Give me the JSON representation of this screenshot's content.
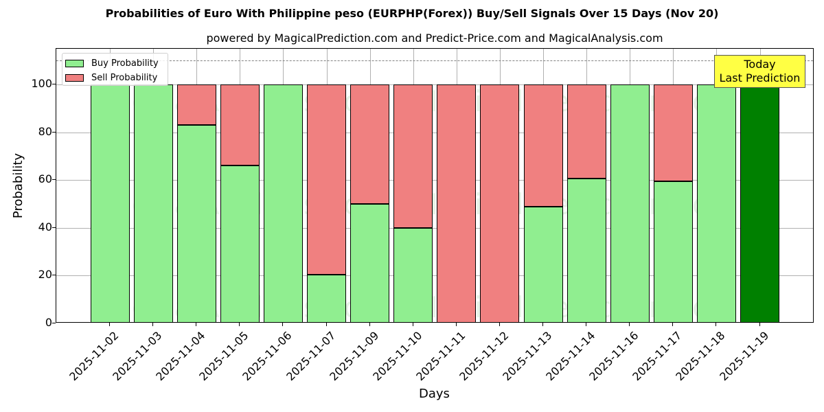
{
  "chart_data": {
    "type": "bar",
    "stacked": true,
    "title": "Probabilities of Euro With Philippine peso (EURPHP(Forex)) Buy/Sell Signals Over 15 Days (Nov 20)",
    "subtitle": "powered by MagicalPrediction.com and Predict-Price.com and MagicalAnalysis.com",
    "xlabel": "Days",
    "ylabel": "Probability",
    "ylim": [
      0,
      115
    ],
    "yticks": [
      "0",
      "20",
      "40",
      "60",
      "80",
      "100"
    ],
    "grid": true,
    "legend_position": "upper left",
    "reference_line": {
      "y": 110,
      "style": "dashed",
      "color": "#808080"
    },
    "categories": [
      "2025-11-02",
      "2025-11-03",
      "2025-11-04",
      "2025-11-05",
      "2025-11-06",
      "2025-11-07",
      "2025-11-09",
      "2025-11-10",
      "2025-11-11",
      "2025-11-12",
      "2025-11-13",
      "2025-11-14",
      "2025-11-16",
      "2025-11-17",
      "2025-11-18",
      "2025-11-19"
    ],
    "series": [
      {
        "name": "Buy Probability",
        "color": "#90ee90",
        "values": [
          100,
          100,
          83.2,
          66.2,
          100,
          20.5,
          50.0,
          40.0,
          0,
          0,
          49.0,
          60.6,
          100,
          59.5,
          100,
          100
        ]
      },
      {
        "name": "Sell Probability",
        "color": "#f08080",
        "values": [
          0,
          0,
          16.8,
          33.8,
          0,
          79.5,
          50.0,
          60.0,
          100,
          100,
          51.0,
          39.4,
          0,
          40.5,
          0,
          0
        ]
      }
    ],
    "highlight": {
      "category": "2025-11-19",
      "color": "#008000",
      "annotation": "Today\nLast Prediction"
    }
  },
  "labels": {
    "title": "Probabilities of Euro With Philippine peso (EURPHP(Forex)) Buy/Sell Signals Over 15 Days (Nov 20)",
    "subtitle": "powered by MagicalPrediction.com and Predict-Price.com and MagicalAnalysis.com",
    "xlabel": "Days",
    "ylabel": "Probability",
    "legend_buy": "Buy Probability",
    "legend_sell": "Sell Probability",
    "today_line1": "Today",
    "today_line2": "Last Prediction",
    "watermark_a": "MagicalAnalysis.com",
    "watermark_b": "MagicalPrediction.com"
  }
}
